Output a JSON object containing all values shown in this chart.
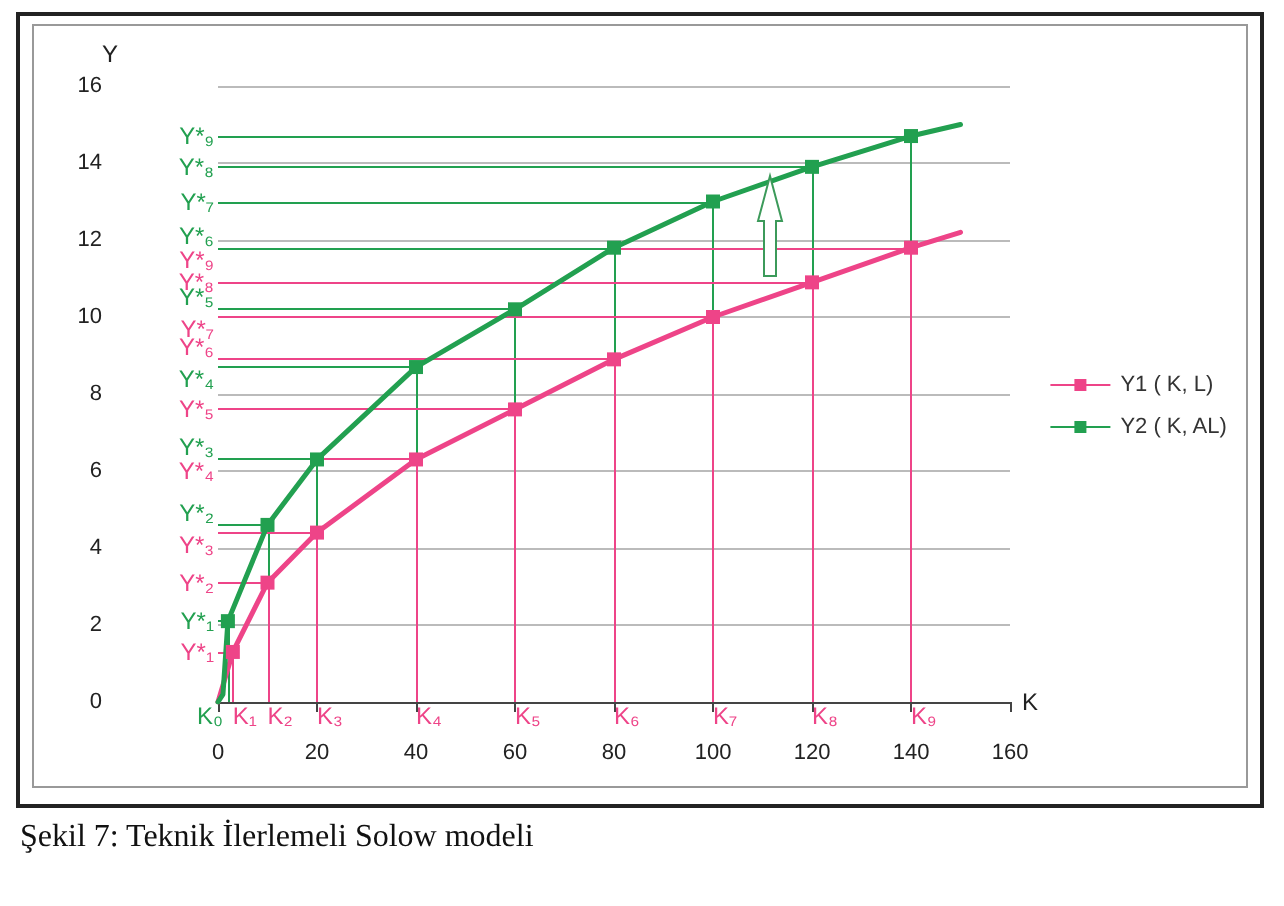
{
  "chart_data": {
    "type": "line",
    "xlabel": "K",
    "ylabel": "Y",
    "annotations": [
      "Şekil 7: Teknik İlerlemeli Solow modeli",
      {
        "text": "K₀",
        "x": 1,
        "y": 0
      }
    ],
    "series": [
      {
        "name": "Y1 ( K, L)",
        "color": "#ee4488",
        "x": [
          0,
          3,
          10,
          20,
          40,
          60,
          80,
          100,
          120,
          140,
          150
        ],
        "values": [
          0,
          1.3,
          3.1,
          4.4,
          6.3,
          7.6,
          8.9,
          10,
          10.9,
          11.8,
          12.2
        ]
      },
      {
        "name": "Y2 ( K, AL)",
        "color": "#22a050",
        "x": [
          0,
          1,
          2,
          10,
          20,
          40,
          60,
          80,
          100,
          120,
          140,
          150
        ],
        "values": [
          0,
          0.2,
          2.1,
          4.6,
          6.3,
          8.7,
          10.2,
          11.8,
          13.0,
          13.9,
          14.7,
          15.0
        ]
      }
    ],
    "ref_lines": [
      {
        "axis": "x",
        "value": 3,
        "label": "K₁",
        "color": "#ee4488"
      },
      {
        "axis": "x",
        "value": 10,
        "label": "K₂",
        "color": "#ee4488"
      },
      {
        "axis": "x",
        "value": 20,
        "label": "K₃",
        "color": "#ee4488"
      },
      {
        "axis": "x",
        "value": 40,
        "label": "K₄",
        "color": "#ee4488"
      },
      {
        "axis": "x",
        "value": 60,
        "label": "K₅",
        "color": "#ee4488"
      },
      {
        "axis": "x",
        "value": 80,
        "label": "K₆",
        "color": "#ee4488"
      },
      {
        "axis": "x",
        "value": 100,
        "label": "K₇",
        "color": "#ee4488"
      },
      {
        "axis": "x",
        "value": 120,
        "label": "K₈",
        "color": "#ee4488"
      },
      {
        "axis": "x",
        "value": 140,
        "label": "K₉",
        "color": "#ee4488"
      },
      {
        "axis": "x",
        "value": 2,
        "label": null,
        "color": "#22a050"
      },
      {
        "axis": "x",
        "value": 10,
        "label": null,
        "color": "#22a050"
      },
      {
        "axis": "x",
        "value": 20,
        "label": null,
        "color": "#22a050"
      },
      {
        "axis": "x",
        "value": 40,
        "label": null,
        "color": "#22a050"
      },
      {
        "axis": "x",
        "value": 60,
        "label": null,
        "color": "#22a050"
      },
      {
        "axis": "x",
        "value": 80,
        "label": null,
        "color": "#22a050"
      },
      {
        "axis": "x",
        "value": 100,
        "label": null,
        "color": "#22a050"
      },
      {
        "axis": "x",
        "value": 120,
        "label": null,
        "color": "#22a050"
      },
      {
        "axis": "x",
        "value": 140,
        "label": null,
        "color": "#22a050"
      },
      {
        "axis": "y",
        "value": 1.3,
        "label": "Y*₁",
        "color": "#ee4488"
      },
      {
        "axis": "y",
        "value": 3.1,
        "label": "Y*₂",
        "color": "#ee4488"
      },
      {
        "axis": "y",
        "value": 4.4,
        "label": "Y*₃",
        "color": "#ee4488"
      },
      {
        "axis": "y",
        "value": 6.3,
        "label": "Y*₄",
        "color": "#ee4488"
      },
      {
        "axis": "y",
        "value": 7.6,
        "label": "Y*₅",
        "color": "#ee4488"
      },
      {
        "axis": "y",
        "value": 8.9,
        "label": "Y*₆",
        "color": "#ee4488"
      },
      {
        "axis": "y",
        "value": 10,
        "label": "Y*₇",
        "color": "#ee4488"
      },
      {
        "axis": "y",
        "value": 10.9,
        "label": "Y*₈",
        "color": "#ee4488"
      },
      {
        "axis": "y",
        "value": 11.8,
        "label": "Y*₉",
        "color": "#ee4488"
      },
      {
        "axis": "y",
        "value": 2.1,
        "label": "Y*₁",
        "color": "#22a050"
      },
      {
        "axis": "y",
        "value": 4.6,
        "label": "Y*₂",
        "color": "#22a050"
      },
      {
        "axis": "y",
        "value": 6.3,
        "label": "Y*₃",
        "color": "#22a050"
      },
      {
        "axis": "y",
        "value": 8.7,
        "label": "Y*₄",
        "color": "#22a050"
      },
      {
        "axis": "y",
        "value": 10.2,
        "label": "Y*₅",
        "color": "#22a050"
      },
      {
        "axis": "y",
        "value": 11.8,
        "label": "Y*₆",
        "color": "#22a050"
      },
      {
        "axis": "y",
        "value": 13.0,
        "label": "Y*₇",
        "color": "#22a050"
      },
      {
        "axis": "y",
        "value": 13.9,
        "label": "Y*₈",
        "color": "#22a050"
      },
      {
        "axis": "y",
        "value": 14.7,
        "label": "Y*₉",
        "color": "#22a050"
      }
    ],
    "xlim": [
      0,
      160
    ],
    "xticks": [
      0,
      20,
      40,
      60,
      80,
      100,
      120,
      140,
      160
    ],
    "ylim": [
      0,
      16
    ],
    "yticks": [
      0,
      2,
      4,
      6,
      8,
      10,
      12,
      14,
      16
    ],
    "grid": "y",
    "legend": "right",
    "marker": "square",
    "line_style": "solid"
  }
}
